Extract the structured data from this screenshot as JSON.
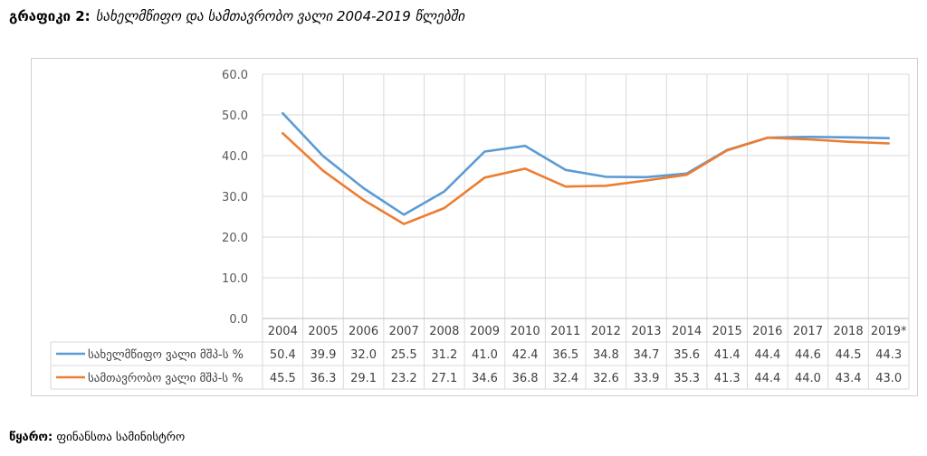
{
  "caption": {
    "label": "გრაფიკი 2:",
    "title": "სახელმწიფო და სამთავრობო ვალი 2004-2019 წლებში"
  },
  "source": {
    "label": "წყარო:",
    "text": "ფინანსთა სამინისტრო"
  },
  "chart_data": {
    "type": "line",
    "title": "",
    "xlabel": "",
    "ylabel": "",
    "categories": [
      "2004",
      "2005",
      "2006",
      "2007",
      "2008",
      "2009",
      "2010",
      "2011",
      "2012",
      "2013",
      "2014",
      "2015",
      "2016",
      "2017",
      "2018",
      "2019*"
    ],
    "ylim": [
      0,
      60
    ],
    "ytick_labels": [
      "0.0",
      "10.0",
      "20.0",
      "30.0",
      "40.0",
      "50.0",
      "60.0"
    ],
    "grid": true,
    "legend": "data-table",
    "series": [
      {
        "name": "სახელმწიფო ვალი მშპ-ს %",
        "color": "#5b9bd5",
        "values": [
          50.4,
          39.9,
          32.0,
          25.5,
          31.2,
          41.0,
          42.4,
          36.5,
          34.8,
          34.7,
          35.6,
          41.4,
          44.4,
          44.6,
          44.5,
          44.3
        ],
        "labels": [
          "50.4",
          "39.9",
          "32.0",
          "25.5",
          "31.2",
          "41.0",
          "42.4",
          "36.5",
          "34.8",
          "34.7",
          "35.6",
          "41.4",
          "44.4",
          "44.6",
          "44.5",
          "44.3"
        ]
      },
      {
        "name": "სამთავრობო ვალი მშპ-ს %",
        "color": "#ed7d31",
        "values": [
          45.5,
          36.3,
          29.1,
          23.2,
          27.1,
          34.6,
          36.8,
          32.4,
          32.6,
          33.9,
          35.3,
          41.3,
          44.4,
          44.0,
          43.4,
          43.0
        ],
        "labels": [
          "45.5",
          "36.3",
          "29.1",
          "23.2",
          "27.1",
          "34.6",
          "36.8",
          "32.4",
          "32.6",
          "33.9",
          "35.3",
          "41.3",
          "44.4",
          "44.0",
          "43.4",
          "43.0"
        ]
      }
    ]
  }
}
